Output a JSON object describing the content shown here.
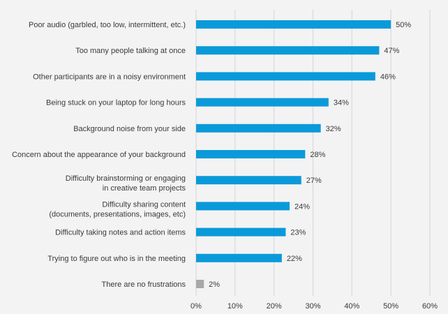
{
  "chart_data": {
    "type": "bar",
    "orientation": "horizontal",
    "title": "",
    "xlabel": "",
    "ylabel": "",
    "xlim": [
      0,
      60
    ],
    "grid": true,
    "x_ticks": [
      "0%",
      "10%",
      "20%",
      "30%",
      "40%",
      "50%",
      "60%"
    ],
    "x_tick_values": [
      0,
      10,
      20,
      30,
      40,
      50,
      60
    ],
    "categories": [
      [
        "Poor audio (garbled, too low, intermittent, etc.)"
      ],
      [
        "Too many people talking at once"
      ],
      [
        "Other participants are in a noisy environment"
      ],
      [
        "Being stuck on your laptop for long hours"
      ],
      [
        "Background noise from your side"
      ],
      [
        "Concern about the appearance of your background"
      ],
      [
        "Difficulty brainstorming or engaging",
        "in creative team projects"
      ],
      [
        "Difficulty sharing content",
        "(documents, presentations, images, etc)"
      ],
      [
        "Difficulty taking notes and action items"
      ],
      [
        "Trying to figure out who is in the meeting"
      ],
      [
        "There are no frustrations"
      ]
    ],
    "values": [
      50,
      47,
      46,
      34,
      32,
      28,
      27,
      24,
      23,
      22,
      2
    ],
    "data_labels": [
      "50%",
      "47%",
      "46%",
      "34%",
      "32%",
      "28%",
      "27%",
      "24%",
      "23%",
      "22%",
      "2%"
    ],
    "bar_colors": [
      "#0a9ad9",
      "#0a9ad9",
      "#0a9ad9",
      "#0a9ad9",
      "#0a9ad9",
      "#0a9ad9",
      "#0a9ad9",
      "#0a9ad9",
      "#0a9ad9",
      "#0a9ad9",
      "#a8a8a8"
    ]
  }
}
